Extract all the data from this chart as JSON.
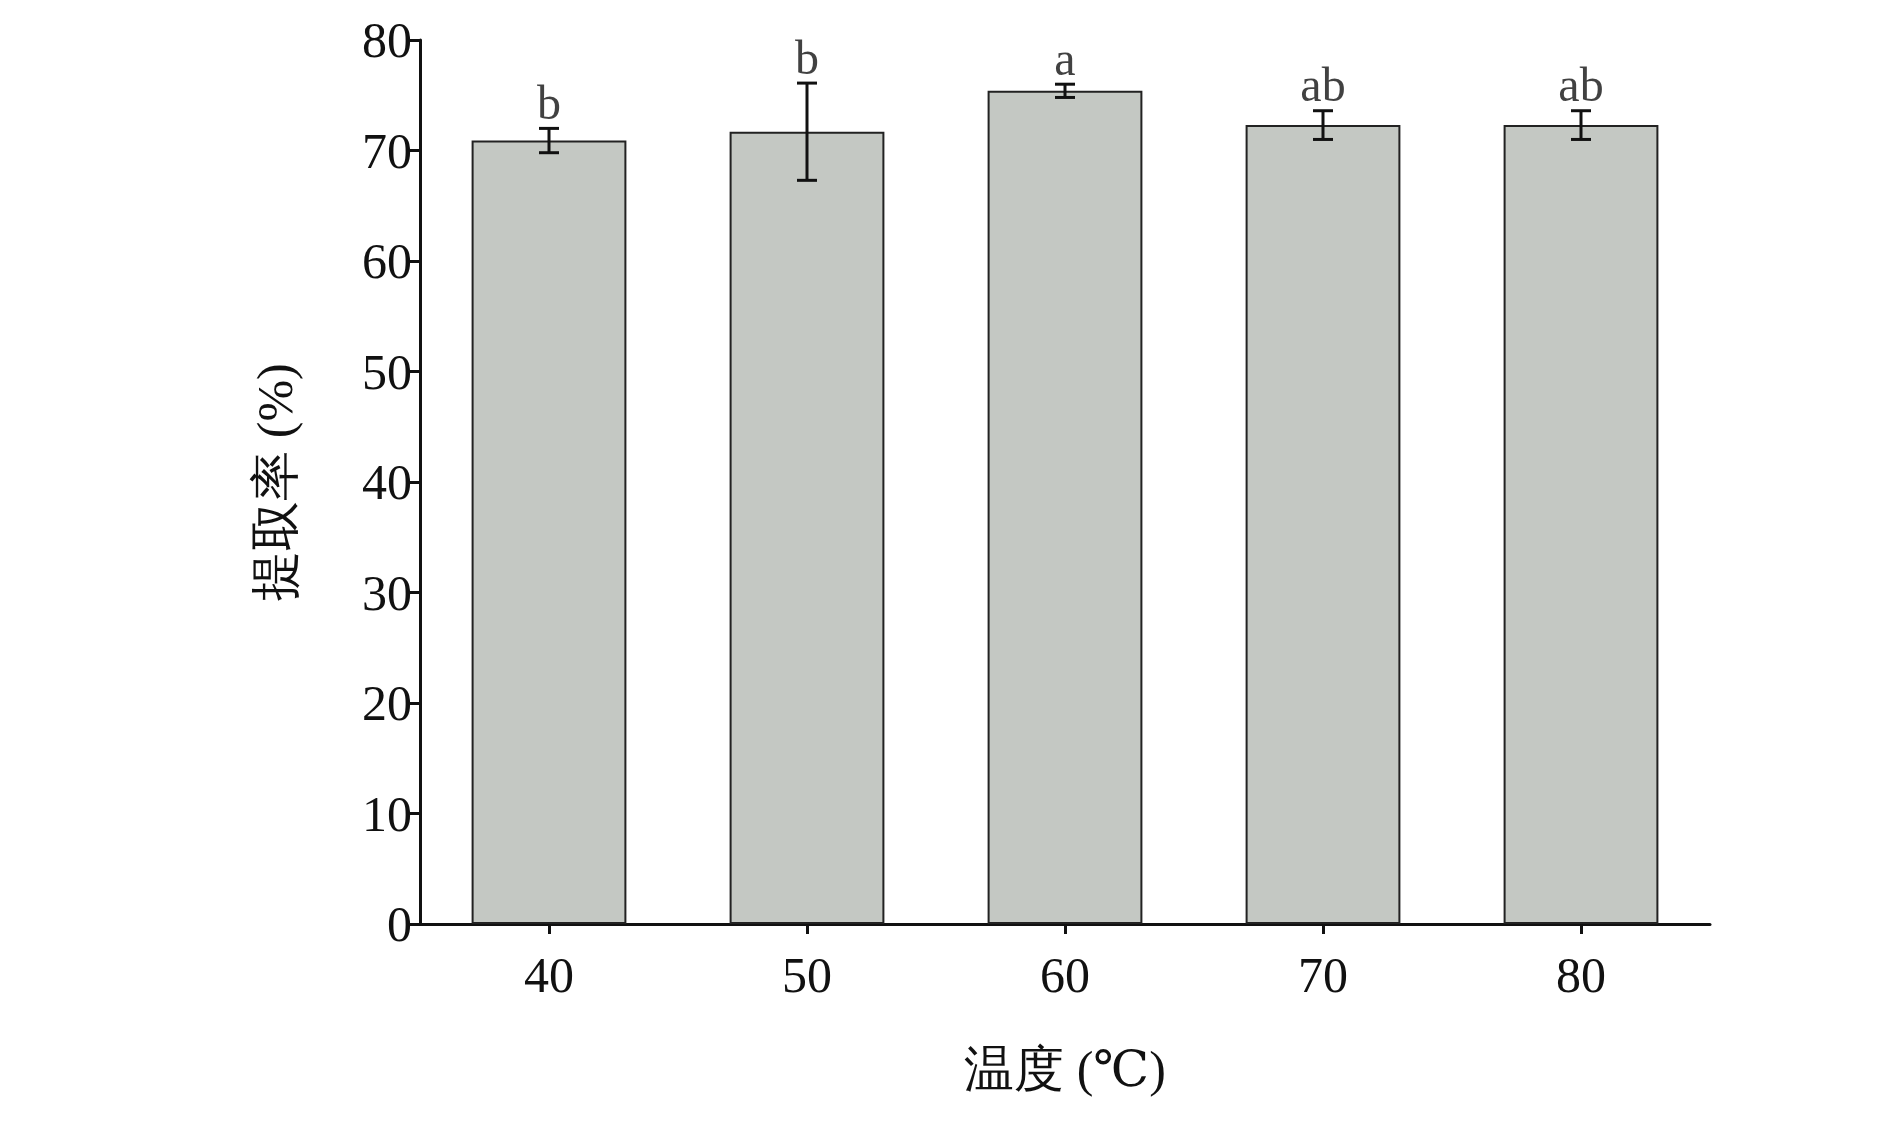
{
  "chart_data": {
    "type": "bar",
    "xlabel": "温度 (℃)",
    "ylabel": "提取率 (%)",
    "categories": [
      "40",
      "50",
      "60",
      "70",
      "80"
    ],
    "values": [
      70.9,
      71.7,
      75.4,
      72.3,
      72.3
    ],
    "errors": [
      1.1,
      4.4,
      0.6,
      1.3,
      1.3
    ],
    "color": "#c4c8c3",
    "ylim": [
      0,
      80
    ],
    "yticks": [
      0,
      10,
      20,
      30,
      40,
      50,
      60,
      70,
      80
    ],
    "grid": false,
    "annotations": [
      {
        "text": "b",
        "x": "40",
        "y": 72.0
      },
      {
        "text": "b",
        "x": "50",
        "y": 76.1
      },
      {
        "text": "a",
        "x": "60",
        "y": 76.0
      },
      {
        "text": "ab",
        "x": "70",
        "y": 73.6
      },
      {
        "text": "ab",
        "x": "80",
        "y": 73.6
      }
    ]
  }
}
